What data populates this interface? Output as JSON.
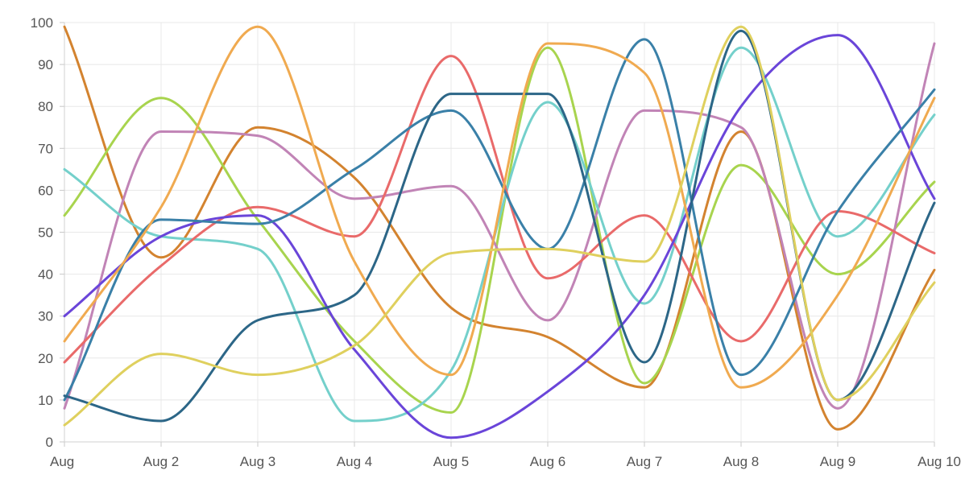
{
  "chart_data": {
    "type": "line",
    "title": "",
    "xlabel": "",
    "ylabel": "",
    "ylim": [
      0,
      100
    ],
    "yticks": [
      0,
      10,
      20,
      30,
      40,
      50,
      60,
      70,
      80,
      90,
      100
    ],
    "categories": [
      "Aug",
      "Aug 2",
      "Aug 3",
      "Aug 4",
      "Aug 5",
      "Aug 6",
      "Aug 7",
      "Aug 8",
      "Aug 9",
      "Aug 10"
    ],
    "grid": true,
    "legend": "none",
    "smooth": true,
    "series": [
      {
        "color": "#d3832f",
        "values": [
          99,
          44,
          75,
          63,
          32,
          25,
          13,
          74,
          3,
          41
        ]
      },
      {
        "color": "#a8d44e",
        "values": [
          54,
          82,
          53,
          24,
          7,
          94,
          14,
          66,
          40,
          62
        ]
      },
      {
        "color": "#c184b6",
        "values": [
          8,
          74,
          73,
          58,
          61,
          29,
          79,
          75,
          8,
          95
        ]
      },
      {
        "color": "#74d0cb",
        "values": [
          65,
          49,
          46,
          5,
          17,
          81,
          33,
          94,
          49,
          78
        ]
      },
      {
        "color": "#e96a6a",
        "values": [
          19,
          42,
          56,
          49,
          92,
          39,
          54,
          24,
          55,
          45
        ]
      },
      {
        "color": "#6a45d9",
        "values": [
          30,
          49,
          54,
          22,
          1,
          12,
          35,
          80,
          97,
          58
        ]
      },
      {
        "color": "#3a80a8",
        "values": [
          10,
          53,
          52,
          65,
          79,
          46,
          96,
          16,
          55,
          84
        ]
      },
      {
        "color": "#2c6687",
        "values": [
          11,
          5,
          29,
          35,
          83,
          83,
          19,
          98,
          10,
          57
        ]
      },
      {
        "color": "#f0aa50",
        "values": [
          24,
          56,
          99,
          43,
          16,
          95,
          88,
          13,
          35,
          82
        ]
      },
      {
        "color": "#dfd05e",
        "values": [
          4,
          21,
          16,
          23,
          45,
          46,
          43,
          99,
          10,
          38
        ]
      }
    ]
  }
}
